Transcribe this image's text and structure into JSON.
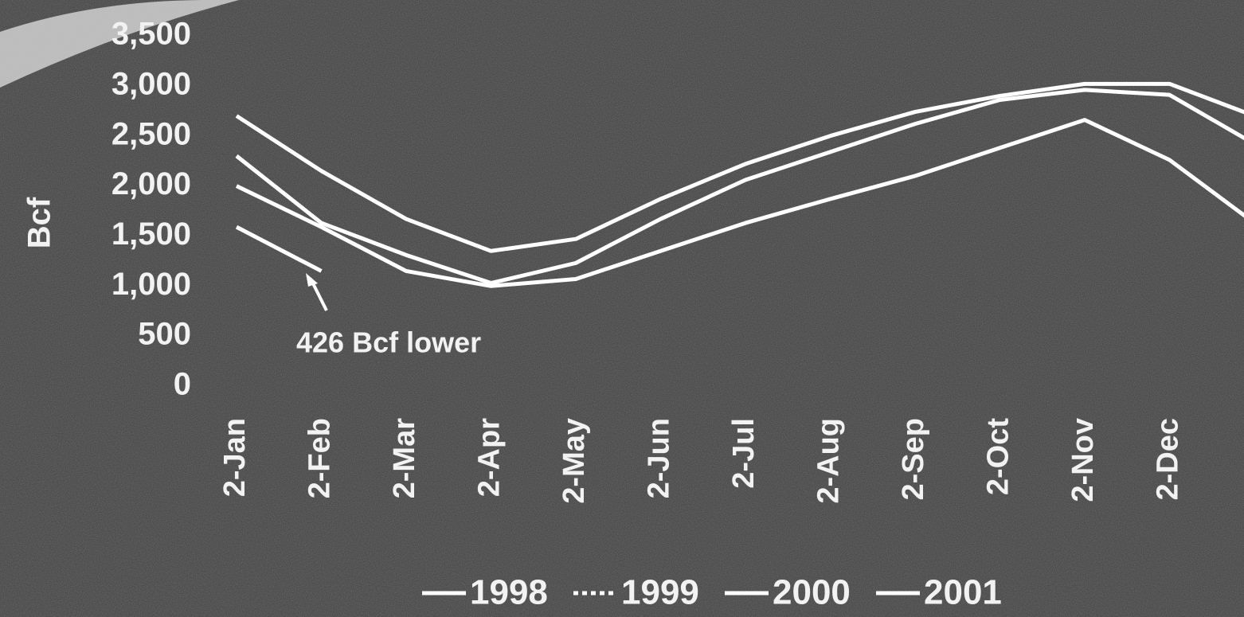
{
  "chart_data": {
    "type": "line",
    "y_label": "Bcf",
    "categories": [
      "2-Jan",
      "2-Feb",
      "2-Mar",
      "2-Apr",
      "2-May",
      "2-Jun",
      "2-Jul",
      "2-Aug",
      "2-Sep",
      "2-Oct",
      "2-Nov",
      "2-Dec",
      null
    ],
    "series": [
      {
        "name": "1998",
        "color": "#ffffff",
        "values": [
          2700,
          2150,
          1670,
          1350,
          1470,
          1870,
          2220,
          2500,
          2740,
          2900,
          3020,
          3020,
          2700
        ]
      },
      {
        "name": "1999",
        "color": "#ffffff",
        "values": [
          2300,
          1630,
          1310,
          1030,
          1230,
          1670,
          2060,
          2340,
          2620,
          2860,
          2960,
          2910,
          2420
        ]
      },
      {
        "name": "2000",
        "color": "#ffffff",
        "values": [
          2000,
          1590,
          1150,
          1000,
          1070,
          1350,
          1630,
          1870,
          2100,
          2380,
          2660,
          2260,
          1630
        ]
      },
      {
        "name": "2001",
        "color": "#ffffff",
        "values": [
          1590,
          1150,
          null,
          null,
          null,
          null,
          null,
          null,
          null,
          null,
          null,
          null,
          null
        ]
      }
    ],
    "ylim": [
      0,
      3500
    ],
    "yticks": [
      0,
      500,
      {
        "value": 1000,
        "label": "1,000"
      },
      {
        "value": 1500,
        "label": "1,500"
      },
      {
        "value": 2000,
        "label": "2,000"
      },
      {
        "value": 2500,
        "label": "2,500"
      },
      {
        "value": 3000,
        "label": "3,000"
      },
      {
        "value": 3500,
        "label": "3,500"
      }
    ],
    "annotation": "426 Bcf lower",
    "grid": false
  }
}
